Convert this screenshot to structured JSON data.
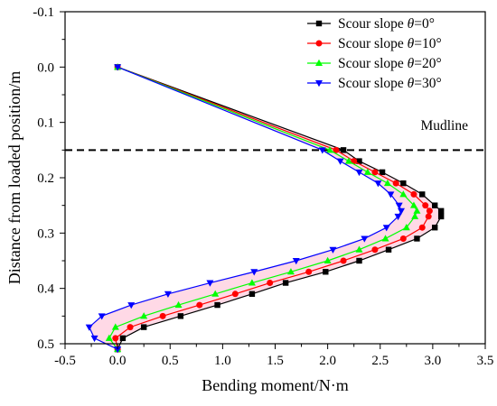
{
  "chart_data": {
    "type": "line",
    "title": "",
    "xlabel": "Bending moment/N·m",
    "ylabel": "Distance from loaded position/m",
    "xlim": [
      -0.5,
      3.5
    ],
    "ylim": [
      -0.1,
      0.5
    ],
    "y_axis_inverted": true,
    "x_ticks": [
      "-0.5",
      "0.0",
      "0.5",
      "1.0",
      "1.5",
      "2.0",
      "2.5",
      "3.0",
      "3.5"
    ],
    "y_ticks": [
      "-0.1",
      "0.0",
      "0.1",
      "0.2",
      "0.3",
      "0.4",
      "0.5"
    ],
    "grid": false,
    "legend_position": "top-right",
    "annotation": {
      "label": "Mudline",
      "y": 0.15,
      "style": "dashed horizontal line"
    },
    "fill_between_series": {
      "color": "#ffd0e0",
      "between": [
        "Scour slope θ=0°",
        "Scour slope θ=30°"
      ]
    },
    "series": [
      {
        "name": "Scour slope θ=0°",
        "prefix": "Scour slope ",
        "symbol": "θ",
        "suffix": "=0°",
        "color": "#000000",
        "marker": "square",
        "points": [
          [
            0.0,
            0.0
          ],
          [
            2.15,
            0.15
          ],
          [
            2.3,
            0.17
          ],
          [
            2.52,
            0.19
          ],
          [
            2.72,
            0.21
          ],
          [
            2.9,
            0.23
          ],
          [
            3.02,
            0.25
          ],
          [
            3.08,
            0.26
          ],
          [
            3.08,
            0.27
          ],
          [
            3.02,
            0.29
          ],
          [
            2.85,
            0.31
          ],
          [
            2.58,
            0.33
          ],
          [
            2.3,
            0.35
          ],
          [
            1.98,
            0.37
          ],
          [
            1.6,
            0.39
          ],
          [
            1.28,
            0.41
          ],
          [
            0.95,
            0.43
          ],
          [
            0.6,
            0.45
          ],
          [
            0.25,
            0.47
          ],
          [
            0.05,
            0.49
          ],
          [
            0.0,
            0.51
          ]
        ]
      },
      {
        "name": "Scour slope θ=10°",
        "prefix": "Scour slope ",
        "symbol": "θ",
        "suffix": "=10°",
        "color": "#ff0000",
        "marker": "circle",
        "points": [
          [
            0.0,
            0.0
          ],
          [
            2.08,
            0.15
          ],
          [
            2.25,
            0.17
          ],
          [
            2.45,
            0.19
          ],
          [
            2.65,
            0.21
          ],
          [
            2.82,
            0.23
          ],
          [
            2.93,
            0.25
          ],
          [
            2.97,
            0.26
          ],
          [
            2.96,
            0.27
          ],
          [
            2.9,
            0.29
          ],
          [
            2.72,
            0.31
          ],
          [
            2.45,
            0.33
          ],
          [
            2.15,
            0.35
          ],
          [
            1.82,
            0.37
          ],
          [
            1.45,
            0.39
          ],
          [
            1.12,
            0.41
          ],
          [
            0.78,
            0.43
          ],
          [
            0.43,
            0.45
          ],
          [
            0.12,
            0.47
          ],
          [
            -0.02,
            0.49
          ],
          [
            0.0,
            0.51
          ]
        ]
      },
      {
        "name": "Scour slope θ=20°",
        "prefix": "Scour slope ",
        "symbol": "θ",
        "suffix": "=20°",
        "color": "#00ff00",
        "marker": "triangle-up",
        "points": [
          [
            0.0,
            0.0
          ],
          [
            2.02,
            0.15
          ],
          [
            2.2,
            0.17
          ],
          [
            2.38,
            0.19
          ],
          [
            2.57,
            0.21
          ],
          [
            2.72,
            0.23
          ],
          [
            2.82,
            0.25
          ],
          [
            2.85,
            0.26
          ],
          [
            2.83,
            0.27
          ],
          [
            2.75,
            0.29
          ],
          [
            2.55,
            0.31
          ],
          [
            2.3,
            0.33
          ],
          [
            2.0,
            0.35
          ],
          [
            1.65,
            0.37
          ],
          [
            1.28,
            0.39
          ],
          [
            0.93,
            0.41
          ],
          [
            0.58,
            0.43
          ],
          [
            0.25,
            0.45
          ],
          [
            -0.02,
            0.47
          ],
          [
            -0.08,
            0.49
          ],
          [
            0.0,
            0.51
          ]
        ]
      },
      {
        "name": "Scour slope θ=30°",
        "prefix": "Scour slope ",
        "symbol": "θ",
        "suffix": "=30°",
        "color": "#0000ff",
        "marker": "triangle-down",
        "points": [
          [
            0.0,
            0.0
          ],
          [
            1.95,
            0.15
          ],
          [
            2.12,
            0.17
          ],
          [
            2.3,
            0.19
          ],
          [
            2.48,
            0.21
          ],
          [
            2.6,
            0.23
          ],
          [
            2.68,
            0.25
          ],
          [
            2.7,
            0.26
          ],
          [
            2.67,
            0.27
          ],
          [
            2.56,
            0.29
          ],
          [
            2.35,
            0.31
          ],
          [
            2.05,
            0.33
          ],
          [
            1.7,
            0.35
          ],
          [
            1.3,
            0.37
          ],
          [
            0.88,
            0.39
          ],
          [
            0.48,
            0.41
          ],
          [
            0.13,
            0.43
          ],
          [
            -0.15,
            0.45
          ],
          [
            -0.27,
            0.47
          ],
          [
            -0.22,
            0.49
          ],
          [
            0.0,
            0.51
          ]
        ]
      }
    ]
  }
}
